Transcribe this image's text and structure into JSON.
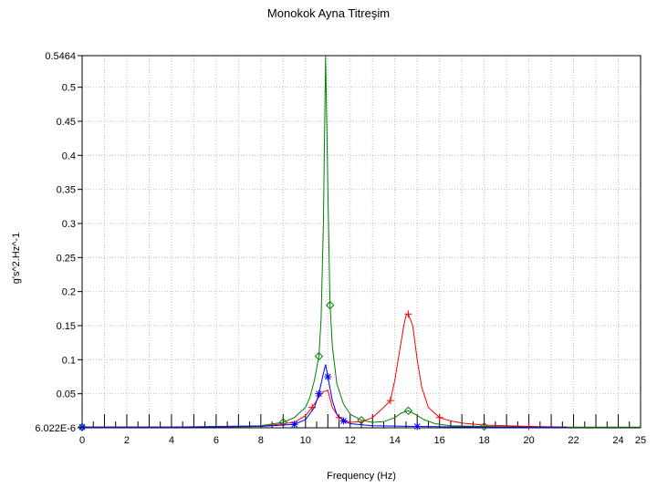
{
  "chart_data": {
    "type": "line",
    "title": "Monokok Ayna Titreşim",
    "xlabel": "Frequency (Hz)",
    "ylabel": "g's^2.Hz^-1",
    "xlim": [
      0,
      25
    ],
    "ylim": [
      6.022e-06,
      0.5464
    ],
    "x_ticks": [
      "0",
      "2",
      "4",
      "6",
      "8",
      "10",
      "12",
      "14",
      "16",
      "18",
      "20",
      "22",
      "24",
      "25"
    ],
    "x_tick_values": [
      0,
      2,
      4,
      6,
      8,
      10,
      12,
      14,
      16,
      18,
      20,
      22,
      24,
      25
    ],
    "y_ticks": [
      "6.022E-6",
      "0.05",
      "0.1",
      "0.15",
      "0.2",
      "0.25",
      "0.3",
      "0.35",
      "0.4",
      "0.45",
      "0.5",
      "0.5464"
    ],
    "y_tick_values": [
      6.022e-06,
      0.05,
      0.1,
      0.15,
      0.2,
      0.25,
      0.3,
      0.35,
      0.4,
      0.45,
      0.5,
      0.5464
    ],
    "grid": true,
    "legend": "none",
    "series": [
      {
        "color": "#008000",
        "marker": "diamond",
        "x": [
          0,
          2,
          4,
          6,
          8,
          9,
          9.5,
          10,
          10.2,
          10.4,
          10.6,
          10.7,
          10.8,
          10.9,
          11.0,
          11.1,
          11.2,
          11.4,
          11.7,
          12,
          12.5,
          13,
          13.5,
          14,
          14.3,
          14.6,
          14.9,
          15.3,
          15.8,
          16.5,
          18,
          20,
          22,
          25
        ],
        "y": [
          0.001,
          0.001,
          0.001,
          0.002,
          0.003,
          0.008,
          0.015,
          0.03,
          0.045,
          0.07,
          0.105,
          0.16,
          0.3,
          0.5464,
          0.35,
          0.18,
          0.12,
          0.065,
          0.035,
          0.02,
          0.011,
          0.008,
          0.009,
          0.015,
          0.022,
          0.025,
          0.02,
          0.012,
          0.006,
          0.003,
          0.002,
          0.001,
          0.001,
          0.001
        ]
      },
      {
        "color": "#ff0000",
        "marker": "plus",
        "x": [
          0,
          4,
          8,
          9.5,
          10,
          10.3,
          10.6,
          10.8,
          11.0,
          11.2,
          11.5,
          12,
          12.5,
          13,
          13.5,
          13.8,
          14,
          14.2,
          14.4,
          14.5,
          14.6,
          14.8,
          15,
          15.2,
          15.5,
          16,
          16.5,
          17,
          18,
          19,
          20,
          21.7
        ],
        "y": [
          0.001,
          0.001,
          0.002,
          0.008,
          0.018,
          0.03,
          0.045,
          0.053,
          0.055,
          0.03,
          0.015,
          0.008,
          0.009,
          0.015,
          0.03,
          0.04,
          0.07,
          0.11,
          0.15,
          0.165,
          0.167,
          0.15,
          0.1,
          0.06,
          0.03,
          0.015,
          0.01,
          0.007,
          0.004,
          0.003,
          0.002,
          0.001
        ]
      },
      {
        "color": "#0000ff",
        "marker": "star",
        "x": [
          0,
          4,
          8,
          9.5,
          10,
          10.4,
          10.6,
          10.8,
          10.9,
          11.0,
          11.2,
          11.4,
          11.7,
          12,
          13,
          15,
          18,
          21.7
        ],
        "y": [
          0.001,
          0.001,
          0.002,
          0.005,
          0.012,
          0.03,
          0.05,
          0.08,
          0.093,
          0.075,
          0.04,
          0.02,
          0.01,
          0.006,
          0.003,
          0.002,
          0.001,
          0.001
        ]
      }
    ]
  }
}
